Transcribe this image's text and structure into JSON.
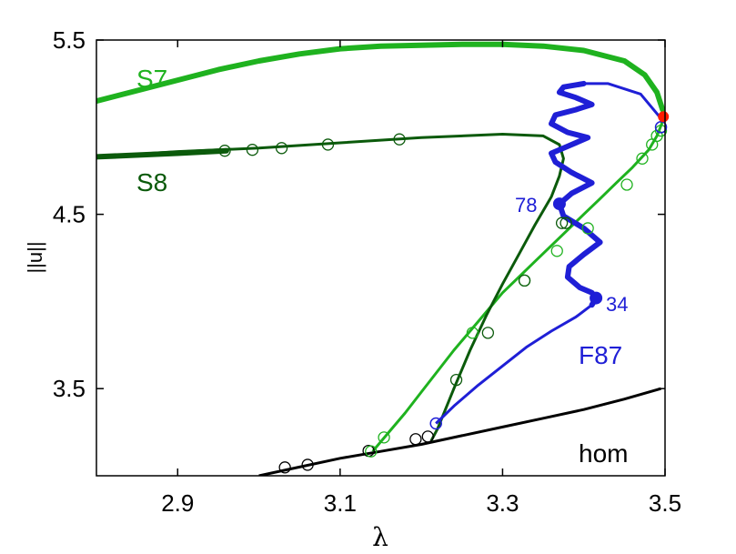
{
  "chart_data": {
    "type": "line",
    "xlabel": "λ",
    "ylabel": "||u||",
    "xlim": [
      2.8,
      3.5
    ],
    "ylim": [
      3.0,
      5.5
    ],
    "xticks": [
      {
        "value": 2.9,
        "label": "2.9"
      },
      {
        "value": 3.1,
        "label": "3.1"
      },
      {
        "value": 3.3,
        "label": "3.3"
      },
      {
        "value": 3.5,
        "label": "3.5"
      }
    ],
    "yticks": [
      {
        "value": 3.5,
        "label": "3.5"
      },
      {
        "value": 4.5,
        "label": "4.5"
      },
      {
        "value": 5.5,
        "label": "5.5"
      }
    ],
    "grid": false,
    "legend": "none",
    "colors": {
      "S7": "#1fb21f",
      "S8": "#0b5a0b",
      "F87": "#1f1fd6",
      "hom": "#000000",
      "bifurcation": "#ff1a00"
    },
    "series": [
      {
        "name": "hom",
        "color": "#000000",
        "x": [
          3.0,
          3.05,
          3.1,
          3.15,
          3.2,
          3.25,
          3.3,
          3.35,
          3.4,
          3.45,
          3.495
        ],
        "y": [
          3.0,
          3.05,
          3.1,
          3.14,
          3.18,
          3.23,
          3.28,
          3.33,
          3.38,
          3.44,
          3.5
        ],
        "markers_x": [
          3.032,
          3.06,
          3.135,
          3.193,
          3.208
        ],
        "markers_y": [
          3.048,
          3.063,
          3.143,
          3.21,
          3.225
        ]
      },
      {
        "name": "S7",
        "color": "#1fb21f",
        "x": [
          2.8,
          2.85,
          2.9,
          2.95,
          3.0,
          3.05,
          3.1,
          3.15,
          3.2,
          3.25,
          3.3,
          3.35,
          3.4,
          3.45,
          3.475,
          3.49,
          3.497,
          3.496,
          3.49,
          3.48,
          3.46,
          3.44,
          3.42,
          3.4,
          3.38,
          3.36,
          3.34,
          3.32,
          3.3,
          3.28,
          3.26,
          3.24,
          3.22,
          3.2,
          3.18,
          3.16,
          3.14
        ],
        "y": [
          5.15,
          5.21,
          5.27,
          5.33,
          5.38,
          5.42,
          5.45,
          5.465,
          5.47,
          5.475,
          5.475,
          5.465,
          5.44,
          5.38,
          5.3,
          5.2,
          5.1,
          5.02,
          4.95,
          4.87,
          4.77,
          4.68,
          4.59,
          4.5,
          4.41,
          4.32,
          4.23,
          4.14,
          4.05,
          3.94,
          3.83,
          3.72,
          3.6,
          3.48,
          3.36,
          3.25,
          3.14
        ],
        "markers_x": [
          3.495,
          3.49,
          3.484,
          3.472,
          3.453,
          3.405,
          3.367,
          3.327,
          3.263,
          3.154,
          3.138
        ],
        "markers_y": [
          4.98,
          4.95,
          4.9,
          4.82,
          4.67,
          4.42,
          4.29,
          4.12,
          3.82,
          3.22,
          3.14
        ],
        "thick_until_x": 3.3
      },
      {
        "name": "S8",
        "color": "#0b5a0b",
        "x": [
          2.8,
          2.9,
          3.0,
          3.1,
          3.2,
          3.3,
          3.35,
          3.37,
          3.375,
          3.37,
          3.36,
          3.34,
          3.32,
          3.3,
          3.28,
          3.26,
          3.24,
          3.22,
          3.212
        ],
        "y": [
          4.83,
          4.86,
          4.88,
          4.91,
          4.94,
          4.96,
          4.95,
          4.9,
          4.82,
          4.72,
          4.6,
          4.44,
          4.27,
          4.1,
          3.92,
          3.72,
          3.5,
          3.27,
          3.2
        ],
        "markers_x": [
          2.958,
          2.992,
          3.028,
          3.085,
          3.173,
          3.378,
          3.373,
          3.327,
          3.282,
          3.243
        ],
        "markers_y": [
          4.865,
          4.87,
          4.88,
          4.9,
          4.93,
          4.45,
          4.45,
          4.12,
          3.82,
          3.55
        ],
        "thick_until_x": 2.96
      },
      {
        "name": "F87",
        "color": "#1f1fd6",
        "x": [
          3.218,
          3.24,
          3.27,
          3.3,
          3.33,
          3.36,
          3.39,
          3.41,
          3.415,
          3.41,
          3.395,
          3.38,
          3.382,
          3.4,
          3.42,
          3.4,
          3.375,
          3.37,
          3.385,
          3.41,
          3.385,
          3.365,
          3.36,
          3.38,
          3.405,
          3.38,
          3.36,
          3.365,
          3.39,
          3.41,
          3.39,
          3.37,
          3.375,
          3.4,
          3.43,
          3.47,
          3.495
        ],
        "y": [
          3.3,
          3.4,
          3.52,
          3.63,
          3.74,
          3.83,
          3.91,
          3.98,
          4.02,
          4.05,
          4.08,
          4.14,
          4.2,
          4.27,
          4.34,
          4.42,
          4.49,
          4.56,
          4.62,
          4.68,
          4.74,
          4.8,
          4.85,
          4.89,
          4.94,
          4.97,
          5.02,
          5.07,
          5.1,
          5.13,
          5.17,
          5.2,
          5.23,
          5.25,
          5.25,
          5.19,
          5.05
        ],
        "thick_from_x": 3.41
      }
    ],
    "bifurcation_points": [
      {
        "x": 3.498,
        "y": 5.06,
        "color": "#ff1a00"
      }
    ],
    "labeled_points": [
      {
        "label": "78",
        "x": 3.37,
        "y": 4.56
      },
      {
        "label": "34",
        "x": 3.415,
        "y": 4.02
      }
    ],
    "open_markers": [
      {
        "x": 3.495,
        "y": 5.0,
        "color": "#1f1fd6"
      },
      {
        "x": 3.218,
        "y": 3.3,
        "color": "#1f1fd6"
      }
    ],
    "annotations": [
      {
        "text": "S7",
        "series": "S7"
      },
      {
        "text": "S8",
        "series": "S8"
      },
      {
        "text": "F87",
        "series": "F87"
      },
      {
        "text": "hom",
        "series": "hom"
      }
    ]
  }
}
